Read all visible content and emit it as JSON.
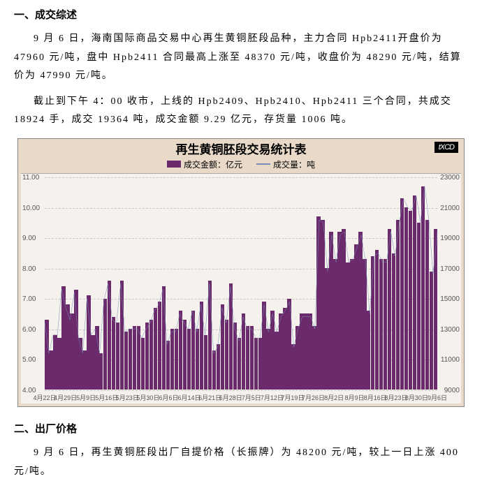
{
  "section1": {
    "title": "一、成交综述",
    "para1": "9 月 6 日，海南国际商品交易中心再生黄铜胚段品种，主力合同 Hpb2411开盘价为 47960 元/吨，盘中 Hpb2411 合同最高上涨至 48370 元/吨，收盘价为 48290 元/吨，结算价为 47990 元/吨。",
    "para2": "截止到下午 4：00 收市，上线的 Hpb2409、Hpb2410、Hpb2411 三个合同，共成交 18924 手，成交 19364 吨，成交金额 9.29 亿元，存货量 1006 吨。"
  },
  "chart": {
    "title": "再生黄铜胚段交易统计表",
    "logo": "tXCD",
    "legend_bar": "成交金额：亿元",
    "legend_line": "成交量：吨",
    "y_left": {
      "min": 4.0,
      "max": 11.0,
      "step": 1.0,
      "decimals": 2
    },
    "y_right": {
      "min": 9000,
      "max": 23000,
      "step": 2000
    },
    "x_labels": [
      "4月22日",
      "4月29日",
      "5月9日",
      "5月16日",
      "5月23日",
      "5月30日",
      "6月6日",
      "6月14日",
      "6月21日",
      "6月28日",
      "7月5日",
      "7月12日",
      "7月19日",
      "7月26日",
      "8月2日",
      "8月9日",
      "8月16日",
      "8月23日",
      "8月30日",
      "9月6日"
    ],
    "bar_color": "#6b2a6b",
    "line_color": "#7a8db8",
    "plot_bg": "#f5f2ed",
    "outer_bg": "#e8d9c9",
    "bars": [
      6.3,
      5.3,
      5.8,
      5.7,
      7.4,
      6.8,
      6.5,
      7.3,
      5.7,
      5.3,
      7.1,
      5.8,
      6.1,
      5.2,
      7.0,
      7.6,
      6.4,
      6.2,
      7.6,
      5.9,
      6.0,
      6.1,
      6.1,
      5.7,
      6.2,
      6.3,
      6.7,
      6.9,
      7.4,
      5.6,
      6.0,
      6.0,
      6.6,
      6.3,
      6.0,
      6.6,
      6.0,
      6.9,
      5.8,
      7.6,
      5.3,
      5.5,
      6.8,
      6.3,
      7.5,
      6.2,
      5.7,
      6.5,
      6.1,
      6.1,
      5.7,
      5.7,
      6.9,
      6.0,
      6.6,
      5.9,
      6.5,
      6.7,
      7.0,
      5.5,
      6.1,
      6.5,
      6.5,
      6.5,
      6.1,
      9.7,
      9.6,
      8.0,
      9.2,
      8.3,
      9.2,
      9.3,
      8.2,
      8.3,
      8.8,
      9.2,
      8.3,
      6.6,
      8.4,
      8.6,
      8.3,
      8.3,
      9.3,
      8.5,
      9.6,
      10.3,
      10.0,
      9.9,
      10.4,
      9.5,
      10.7,
      9.6,
      7.9,
      9.3
    ],
    "line": [
      6.2,
      5.2,
      5.8,
      5.8,
      7.3,
      6.7,
      6.3,
      7.2,
      5.7,
      5.2,
      7.0,
      5.8,
      6.0,
      5.2,
      6.9,
      7.5,
      6.3,
      6.2,
      7.5,
      5.9,
      6.0,
      6.0,
      6.0,
      5.7,
      6.0,
      6.2,
      6.6,
      6.8,
      7.3,
      5.5,
      5.9,
      5.9,
      6.5,
      6.2,
      6.0,
      6.6,
      5.9,
      6.8,
      5.8,
      7.5,
      5.2,
      5.4,
      6.7,
      6.2,
      7.4,
      6.0,
      5.6,
      6.4,
      6.0,
      6.0,
      5.7,
      5.7,
      6.8,
      5.9,
      6.5,
      5.9,
      6.4,
      6.6,
      6.9,
      5.4,
      6.0,
      6.4,
      6.4,
      6.4,
      6.0,
      9.6,
      9.5,
      7.9,
      9.1,
      8.2,
      9.1,
      9.2,
      8.2,
      8.3,
      8.7,
      9.1,
      8.2,
      6.5,
      8.4,
      8.5,
      8.2,
      8.2,
      9.2,
      8.4,
      9.5,
      10.3,
      10.0,
      9.9,
      10.4,
      9.5,
      10.7,
      9.6,
      7.8,
      9.2
    ]
  },
  "section2": {
    "title": "二、出厂价格",
    "para1": "9 月 6 日，再生黄铜胚段出厂自提价格（长振牌）为 48200 元/吨，较上一日上涨 400 元/吨。"
  }
}
